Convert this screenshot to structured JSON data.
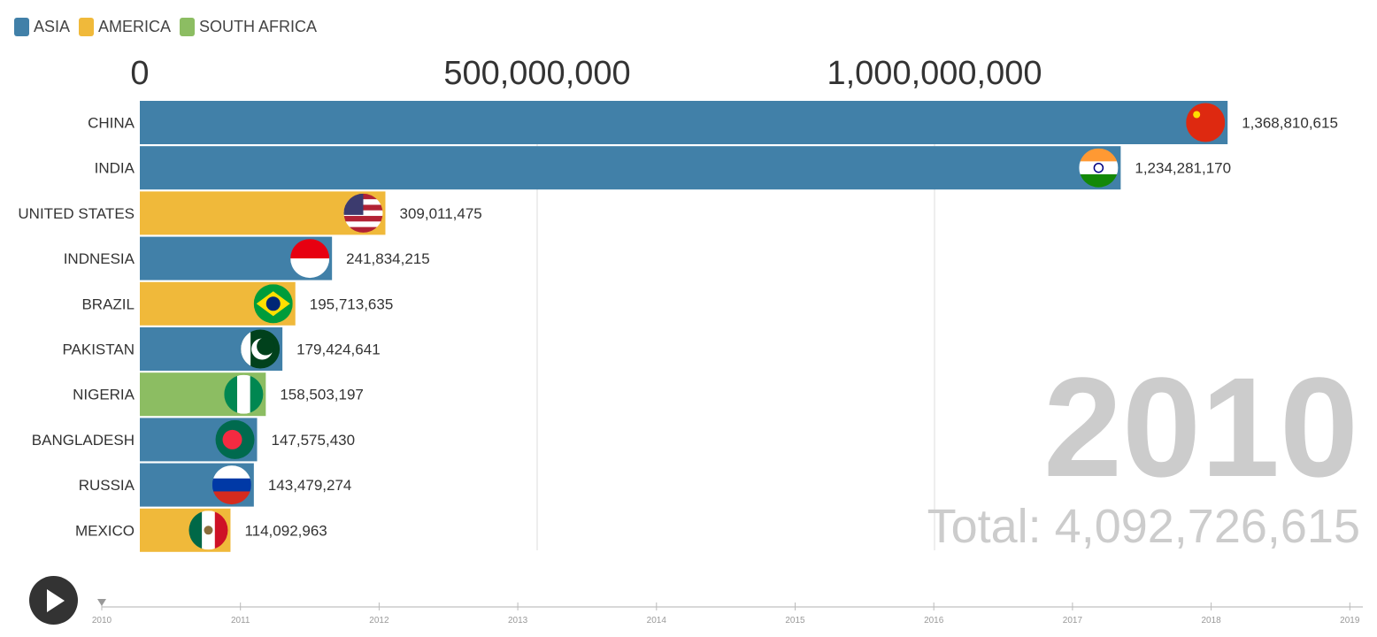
{
  "chart_data": {
    "type": "bar",
    "orientation": "horizontal",
    "legend": [
      {
        "name": "ASIA",
        "color": "#4180a8"
      },
      {
        "name": "AMERICA",
        "color": "#f0b93a"
      },
      {
        "name": "SOUTH AFRICA",
        "color": "#8cbd62"
      }
    ],
    "legend_placement": "top-left",
    "xlim": [
      0,
      1500000000
    ],
    "x_ticks": [
      "0",
      "500,000,000",
      "1,000,000,000"
    ],
    "x_tick_values": [
      0,
      500000000,
      1000000000
    ],
    "grid": true,
    "categories": [
      "CHINA",
      "INDIA",
      "UNITED STATES",
      "INDNESIA",
      "BRAZIL",
      "PAKISTAN",
      "NIGERIA",
      "BANGLADESH",
      "RUSSIA",
      "MEXICO"
    ],
    "values": [
      1368810615,
      1234281170,
      309011475,
      241834215,
      195713635,
      179424641,
      158503197,
      147575430,
      143479274,
      114092963
    ],
    "value_labels": [
      "1,368,810,615",
      "1,234,281,170",
      "309,011,475",
      "241,834,215",
      "195,713,635",
      "179,424,641",
      "158,503,197",
      "147,575,430",
      "143,479,274",
      "114,092,963"
    ],
    "groups": [
      "ASIA",
      "ASIA",
      "AMERICA",
      "ASIA",
      "AMERICA",
      "ASIA",
      "SOUTH AFRICA",
      "ASIA",
      "ASIA",
      "AMERICA"
    ],
    "flags": [
      "china-flag",
      "india-flag",
      "usa-flag",
      "indonesia-flag",
      "brazil-flag",
      "pakistan-flag",
      "nigeria-flag",
      "bangladesh-flag",
      "russia-flag",
      "mexico-flag"
    ],
    "year": "2010",
    "total": "Total: 4,092,726,615",
    "timeline": [
      "2010",
      "2011",
      "2012",
      "2013",
      "2014",
      "2015",
      "2016",
      "2017",
      "2018",
      "2019"
    ],
    "current_year_index": 0
  }
}
